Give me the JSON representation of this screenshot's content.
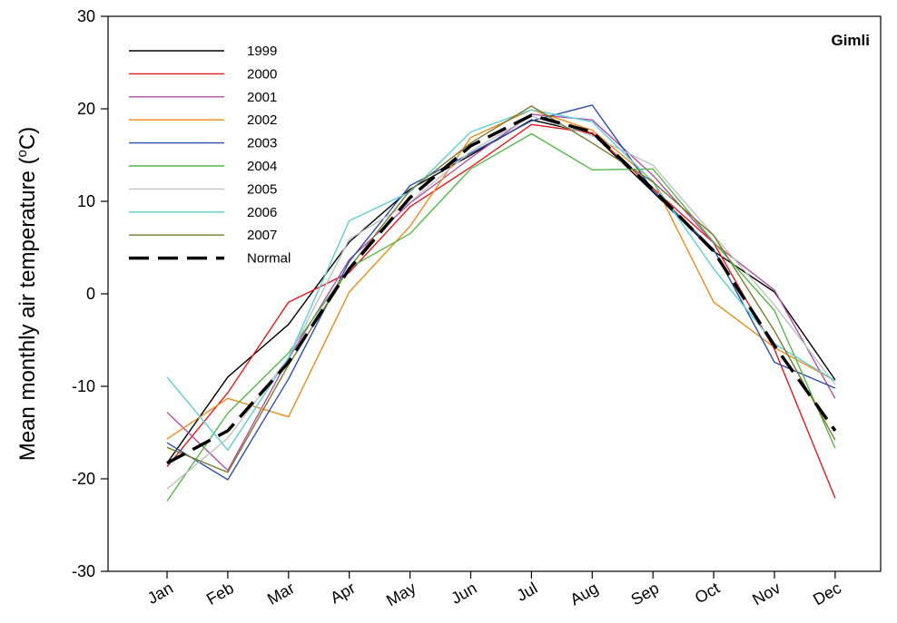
{
  "chart_data": {
    "type": "line",
    "title": "",
    "annotation": "Gimli",
    "ylabel_main": "Mean monthly air temperature (",
    "ylabel_sup": "o",
    "ylabel_unit": "C)",
    "xlabel": "",
    "ylim": [
      -30,
      30
    ],
    "yticks": [
      "-30",
      "-20",
      "-10",
      "0",
      "10",
      "20",
      "30"
    ],
    "ytick_values": [
      -30,
      -20,
      -10,
      0,
      10,
      20,
      30
    ],
    "categories": [
      "Jan",
      "Feb",
      "Mar",
      "Apr",
      "May",
      "Jun",
      "Jul",
      "Aug",
      "Sep",
      "Oct",
      "Nov",
      "Dec"
    ],
    "grid": false,
    "legend_position": "top-left",
    "series": [
      {
        "name": "1999",
        "color": "#000000",
        "dashed": false,
        "values": [
          -18.3,
          -9.0,
          -3.3,
          5.6,
          11.3,
          15.0,
          18.8,
          17.3,
          11.0,
          4.6,
          0.2,
          -9.3
        ]
      },
      {
        "name": "2000",
        "color": "#e31a1c",
        "dashed": false,
        "values": [
          -18.7,
          -10.7,
          -0.9,
          2.3,
          9.4,
          13.7,
          18.3,
          17.4,
          11.4,
          5.5,
          -6.0,
          -22.1
        ]
      },
      {
        "name": "2001",
        "color": "#b04fa8",
        "dashed": false,
        "values": [
          -12.8,
          -19.1,
          -7.0,
          3.7,
          9.8,
          14.7,
          19.4,
          18.8,
          12.8,
          5.5,
          0.4,
          -11.3
        ]
      },
      {
        "name": "2002",
        "color": "#f08a1a",
        "dashed": false,
        "values": [
          -15.7,
          -11.3,
          -13.3,
          0.2,
          7.3,
          16.9,
          19.9,
          17.7,
          12.2,
          -0.9,
          -5.8,
          -9.4
        ]
      },
      {
        "name": "2003",
        "color": "#2b4fa8",
        "dashed": false,
        "values": [
          -16.1,
          -20.1,
          -9.2,
          3.5,
          11.7,
          15.2,
          18.7,
          20.4,
          11.2,
          4.8,
          -7.4,
          -10.2
        ]
      },
      {
        "name": "2004",
        "color": "#55b847",
        "dashed": false,
        "values": [
          -22.4,
          -12.9,
          -6.4,
          2.8,
          6.5,
          13.5,
          17.3,
          13.4,
          13.5,
          5.6,
          -1.8,
          -16.7
        ]
      },
      {
        "name": "2005",
        "color": "#c0c0c0",
        "dashed": false,
        "values": [
          -21.1,
          -15.6,
          -6.9,
          5.9,
          9.9,
          15.4,
          19.2,
          17.1,
          13.9,
          6.3,
          -1.2,
          -9.8
        ]
      },
      {
        "name": "2006",
        "color": "#5ecdd8",
        "dashed": false,
        "values": [
          -9.0,
          -16.9,
          -6.9,
          7.9,
          11.0,
          17.5,
          19.9,
          18.6,
          12.1,
          2.7,
          -5.4,
          -9.4
        ]
      },
      {
        "name": "2007",
        "color": "#7a7a2e",
        "dashed": false,
        "values": [
          -16.6,
          -19.3,
          -7.7,
          2.8,
          11.2,
          16.3,
          20.3,
          16.3,
          12.1,
          6.3,
          -4.0,
          -15.8
        ]
      },
      {
        "name": "Normal",
        "color": "#000000",
        "dashed": true,
        "values": [
          -18.3,
          -14.8,
          -7.4,
          2.7,
          10.4,
          16.0,
          19.3,
          17.5,
          11.3,
          4.6,
          -5.6,
          -14.8
        ]
      }
    ]
  }
}
